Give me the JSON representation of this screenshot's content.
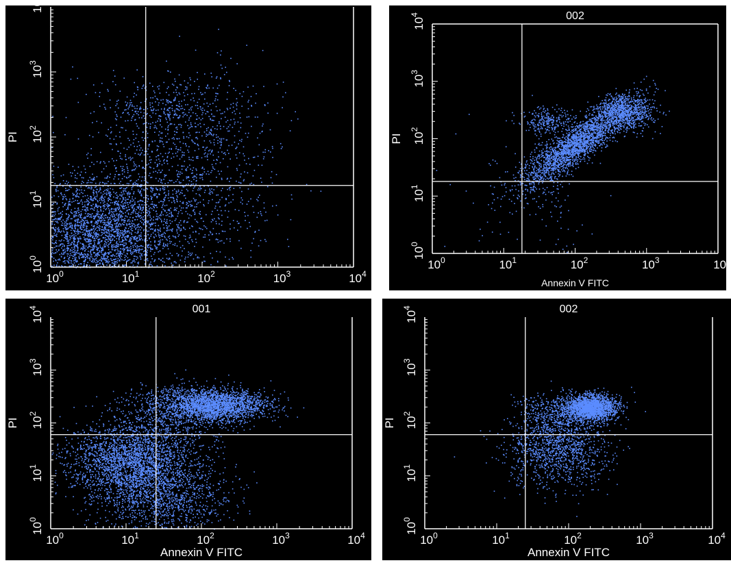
{
  "colors": {
    "background": "#000000",
    "points": "#5b8cff",
    "axes": "#ffffff"
  },
  "chart_data": [
    {
      "type": "scatter",
      "title": "",
      "xlabel": "",
      "ylabel": "PI",
      "xscale": "log",
      "yscale": "log",
      "xlim": [
        1,
        10000
      ],
      "ylim": [
        1,
        10000
      ],
      "x_ticks": [
        "10^0",
        "10^1",
        "10^2",
        "10^3",
        "10^4"
      ],
      "y_ticks": [
        "10^0",
        "10^1",
        "10^2",
        "10^3",
        "10^4"
      ],
      "quadrant_gates": {
        "x": 18,
        "y": 18
      },
      "clusters": [
        {
          "center": [
            4,
            3
          ],
          "spread": [
            0.55,
            0.45
          ],
          "n": 3200
        },
        {
          "center": [
            40,
            10
          ],
          "spread": [
            0.6,
            0.5
          ],
          "n": 900
        },
        {
          "center": [
            60,
            150
          ],
          "spread": [
            0.6,
            0.45
          ],
          "n": 700
        },
        {
          "center": [
            30,
            300
          ],
          "spread": [
            0.35,
            0.2
          ],
          "n": 150
        }
      ]
    },
    {
      "type": "scatter",
      "title": "002",
      "xlabel": "Annexin V FITC",
      "ylabel": "PI",
      "xscale": "log",
      "yscale": "log",
      "xlim": [
        1,
        10000
      ],
      "ylim": [
        1,
        10000
      ],
      "x_ticks": [
        "10^0",
        "10^1",
        "10^2",
        "10^3",
        "10^4"
      ],
      "y_ticks": [
        "10^0",
        "10^1",
        "10^2",
        "10^3",
        "10^4"
      ],
      "quadrant_gates": {
        "x": 18,
        "y": 18
      },
      "clusters": [
        {
          "center": [
            100,
            80
          ],
          "spread": [
            0.35,
            0.18
          ],
          "n": 2200,
          "diagonal": true
        },
        {
          "center": [
            500,
            300
          ],
          "spread": [
            0.2,
            0.15
          ],
          "n": 900
        },
        {
          "center": [
            40,
            200
          ],
          "spread": [
            0.18,
            0.12
          ],
          "n": 250
        },
        {
          "center": [
            30,
            10
          ],
          "spread": [
            0.45,
            0.45
          ],
          "n": 150
        }
      ]
    },
    {
      "type": "scatter",
      "title": "001",
      "xlabel": "Annexin V FITC",
      "ylabel": "PI",
      "xscale": "log",
      "yscale": "log",
      "xlim": [
        1,
        10000
      ],
      "ylim": [
        1,
        10000
      ],
      "x_ticks": [
        "10^0",
        "10^1",
        "10^2",
        "10^3",
        "10^4"
      ],
      "y_ticks": [
        "10^0",
        "10^1",
        "10^2",
        "10^3",
        "10^4"
      ],
      "quadrant_gates": {
        "x": 25,
        "y": 60
      },
      "clusters": [
        {
          "center": [
            12,
            20
          ],
          "spread": [
            0.4,
            0.35
          ],
          "n": 2500
        },
        {
          "center": [
            30,
            4
          ],
          "spread": [
            0.45,
            0.35
          ],
          "n": 1200
        },
        {
          "center": [
            150,
            220
          ],
          "spread": [
            0.35,
            0.15
          ],
          "n": 2300
        },
        {
          "center": [
            40,
            150
          ],
          "spread": [
            0.4,
            0.3
          ],
          "n": 600
        }
      ]
    },
    {
      "type": "scatter",
      "title": "002",
      "xlabel": "Annexin V FITC",
      "ylabel": "PI",
      "xscale": "log",
      "yscale": "log",
      "xlim": [
        1,
        10000
      ],
      "ylim": [
        1,
        10000
      ],
      "x_ticks": [
        "10^0",
        "10^1",
        "10^2",
        "10^3",
        "10^4"
      ],
      "y_ticks": [
        "10^0",
        "10^1",
        "10^2",
        "10^3",
        "10^4"
      ],
      "quadrant_gates": {
        "x": 25,
        "y": 60
      },
      "clusters": [
        {
          "center": [
            200,
            200
          ],
          "spread": [
            0.18,
            0.12
          ],
          "n": 2000
        },
        {
          "center": [
            70,
            30
          ],
          "spread": [
            0.35,
            0.35
          ],
          "n": 1200
        },
        {
          "center": [
            60,
            150
          ],
          "spread": [
            0.25,
            0.2
          ],
          "n": 400
        }
      ]
    }
  ]
}
